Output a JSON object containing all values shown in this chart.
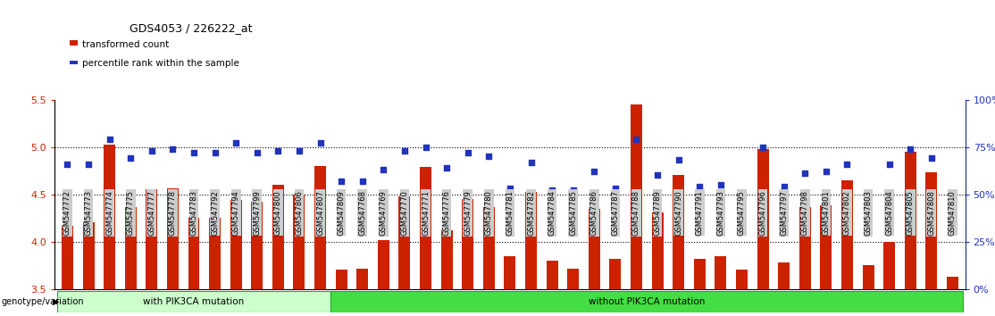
{
  "title": "GDS4053 / 226222_at",
  "samples": [
    "GSM547772",
    "GSM547773",
    "GSM547774",
    "GSM547775",
    "GSM547777",
    "GSM547778",
    "GSM547783",
    "GSM547792",
    "GSM547794",
    "GSM547799",
    "GSM547800",
    "GSM547806",
    "GSM547807",
    "GSM547809",
    "GSM547768",
    "GSM547769",
    "GSM547770",
    "GSM547771",
    "GSM547776",
    "GSM547779",
    "GSM547780",
    "GSM547781",
    "GSM547782",
    "GSM547784",
    "GSM547785",
    "GSM547786",
    "GSM547787",
    "GSM547788",
    "GSM547789",
    "GSM547790",
    "GSM547791",
    "GSM547793",
    "GSM547795",
    "GSM547796",
    "GSM547797",
    "GSM547798",
    "GSM547801",
    "GSM547802",
    "GSM547803",
    "GSM547804",
    "GSM547805",
    "GSM547808",
    "GSM547810"
  ],
  "bar_values": [
    4.17,
    4.21,
    5.02,
    4.37,
    4.55,
    4.56,
    4.25,
    4.25,
    4.44,
    4.42,
    4.6,
    4.5,
    4.8,
    3.71,
    3.72,
    4.02,
    4.48,
    4.79,
    4.12,
    4.45,
    4.37,
    3.85,
    4.53,
    3.8,
    3.72,
    4.35,
    3.82,
    5.45,
    4.31,
    4.7,
    3.82,
    3.85,
    3.71,
    4.98,
    3.78,
    4.37,
    4.38,
    4.65,
    3.75,
    4.0,
    4.95,
    4.73,
    3.63
  ],
  "percentile_values": [
    66,
    66,
    79,
    69,
    73,
    74,
    72,
    72,
    77,
    72,
    73,
    73,
    77,
    57,
    57,
    63,
    73,
    75,
    64,
    72,
    70,
    53,
    67,
    52,
    52,
    62,
    53,
    79,
    60,
    68,
    54,
    55,
    51,
    75,
    54,
    61,
    62,
    66,
    51,
    66,
    74,
    69,
    51
  ],
  "group1_label": "with PIK3CA mutation",
  "group2_label": "without PIK3CA mutation",
  "group1_count": 13,
  "bar_color": "#cc2200",
  "dot_color": "#2233bb",
  "ylim_left": [
    3.5,
    5.5
  ],
  "ylim_right": [
    0,
    100
  ],
  "yticks_left": [
    3.5,
    4.0,
    4.5,
    5.0,
    5.5
  ],
  "yticks_right": [
    0,
    25,
    50,
    75,
    100
  ],
  "grid_values": [
    4.0,
    4.5,
    5.0
  ],
  "legend_label1": "transformed count",
  "legend_label2": "percentile rank within the sample",
  "genotype_label": "genotype/variation",
  "tick_label_bg": "#cccccc",
  "group1_color": "#ccffcc",
  "group2_color": "#44dd44",
  "group_border_color": "#22aa22"
}
